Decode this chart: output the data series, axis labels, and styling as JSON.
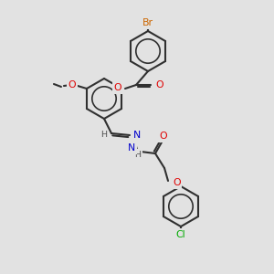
{
  "bg_color": "#e2e2e2",
  "bond_color": "#303030",
  "atom_colors": {
    "Br": "#cc6600",
    "O": "#e00000",
    "N": "#0000cc",
    "Cl": "#00aa00",
    "H": "#505050",
    "C": "#303030"
  },
  "line_width": 1.5,
  "font_size": 7.8,
  "ring_r": 22
}
